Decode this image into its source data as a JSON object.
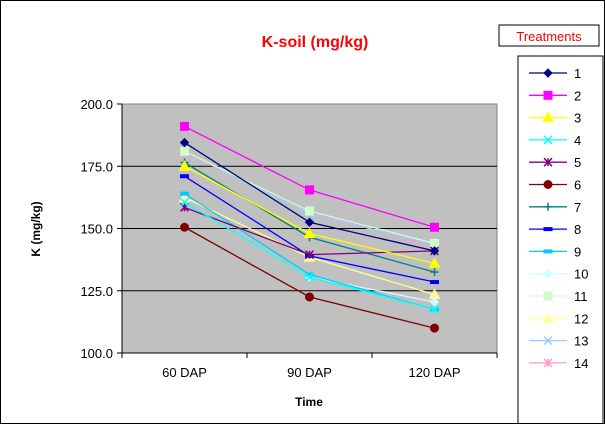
{
  "chart_data": {
    "type": "line",
    "title": "K-soil (mg/kg)",
    "title_color": "#ff0000",
    "xlabel": "Time",
    "ylabel": "K (mg/kg)",
    "categories": [
      "60 DAP",
      "90 DAP",
      "120 DAP"
    ],
    "ylim": [
      100,
      200
    ],
    "yticks": [
      "100.0",
      "125.0",
      "150.0",
      "175.0",
      "200.0"
    ],
    "plot_background": "#c0c0c0",
    "grid": true,
    "legend_title": "Treatments",
    "legend_title_color": "#ff0000",
    "legend_position": "right",
    "series": [
      {
        "name": "1",
        "color": "#000080",
        "marker": "diamond",
        "values": [
          184.5,
          152.5,
          141.0
        ]
      },
      {
        "name": "2",
        "color": "#ff00ff",
        "marker": "square",
        "values": [
          191.0,
          165.5,
          150.5
        ]
      },
      {
        "name": "3",
        "color": "#ffff00",
        "marker": "triangle",
        "values": [
          175.0,
          148.0,
          136.0
        ]
      },
      {
        "name": "4",
        "color": "#00ffff",
        "marker": "x",
        "values": [
          160.5,
          130.5,
          117.5
        ]
      },
      {
        "name": "5",
        "color": "#800080",
        "marker": "star",
        "values": [
          158.5,
          139.5,
          141.0
        ]
      },
      {
        "name": "6",
        "color": "#800000",
        "marker": "circle",
        "values": [
          150.5,
          122.5,
          110.0
        ]
      },
      {
        "name": "7",
        "color": "#008080",
        "marker": "plus",
        "values": [
          176.5,
          146.5,
          132.5
        ]
      },
      {
        "name": "8",
        "color": "#0000ff",
        "marker": "dash",
        "values": [
          171.0,
          139.0,
          128.5
        ]
      },
      {
        "name": "9",
        "color": "#00ccff",
        "marker": "dash",
        "values": [
          164.0,
          131.5,
          117.5
        ]
      },
      {
        "name": "10",
        "color": "#ccffff",
        "marker": "diamond",
        "values": [
          160.5,
          130.5,
          120.5
        ]
      },
      {
        "name": "11",
        "color": "#ccffcc",
        "marker": "square",
        "values": [
          181.0,
          157.0,
          144.0
        ]
      },
      {
        "name": "12",
        "color": "#ffff99",
        "marker": "triangle",
        "values": [
          162.5,
          138.5,
          123.5
        ]
      },
      {
        "name": "13",
        "color": "#99ccff",
        "marker": "x",
        "values": [
          181.0,
          156.0,
          143.5
        ]
      },
      {
        "name": "14",
        "color": "#ff99cc",
        "marker": "star",
        "values": [
          180.5,
          157.0,
          142.5
        ]
      }
    ]
  }
}
